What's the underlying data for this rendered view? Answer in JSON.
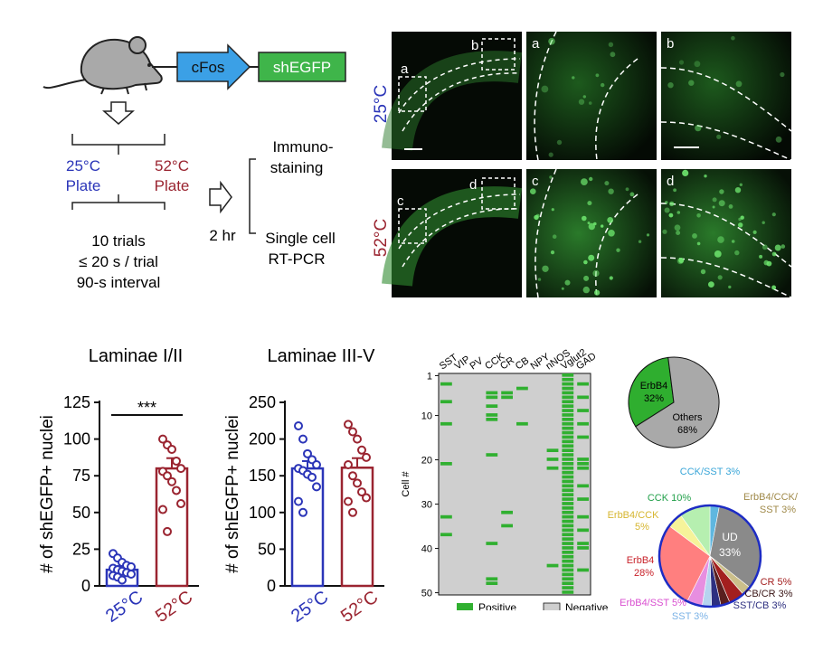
{
  "schematic": {
    "gene_promoter": "cFos",
    "gene_reporter": "shEGFP",
    "cond_cool_temp": "25°C",
    "cond_cool_plate": "Plate",
    "cond_hot_temp": "52°C",
    "cond_hot_plate": "Plate",
    "protocol": [
      "10 trials",
      "≤ 20 s / trial",
      "90-s interval"
    ],
    "delay": "2 hr",
    "readout_top": [
      "Immuno-",
      "staining"
    ],
    "readout_bottom": [
      "Single cell",
      "RT-PCR"
    ]
  },
  "micrographs": {
    "row_cool_label": "25°C",
    "row_hot_label": "52°C",
    "panel_letters": [
      "a",
      "b",
      "a",
      "b",
      "c",
      "d",
      "c",
      "d"
    ]
  },
  "chart_data": [
    {
      "type": "bar",
      "title": "Laminae I/II",
      "ylabel": "# of shEGFP+ nuclei",
      "categories": [
        "25°C",
        "52°C"
      ],
      "values": [
        11,
        80
      ],
      "errors": [
        2.5,
        7
      ],
      "ylim": [
        0,
        125
      ],
      "yticks": [
        0,
        25,
        50,
        75,
        100,
        125
      ],
      "significance": "***",
      "points": [
        [
          22,
          19,
          16,
          14,
          13,
          12,
          11,
          10,
          9,
          8,
          7,
          6,
          4
        ],
        [
          100,
          96,
          93,
          85,
          80,
          78,
          75,
          71,
          65,
          56,
          52,
          37
        ]
      ],
      "colors": [
        "#2b35b8",
        "#9a2430"
      ]
    },
    {
      "type": "bar",
      "title": "Laminae III-V",
      "ylabel": "# of shEGFP+ nuclei",
      "categories": [
        "25°C",
        "52°C"
      ],
      "values": [
        160,
        161
      ],
      "errors": [
        10,
        13
      ],
      "ylim": [
        0,
        250
      ],
      "yticks": [
        0,
        50,
        100,
        150,
        200,
        250
      ],
      "points": [
        [
          218,
          200,
          180,
          172,
          165,
          160,
          157,
          152,
          148,
          135,
          115,
          100
        ],
        [
          220,
          210,
          200,
          185,
          175,
          165,
          150,
          140,
          128,
          120,
          115,
          100
        ]
      ],
      "colors": [
        "#2b35b8",
        "#9a2430"
      ]
    },
    {
      "type": "heatmap",
      "ylabel": "Cell #",
      "columns": [
        "SST",
        "VIP",
        "PV",
        "CCK",
        "CR",
        "CB",
        "NPY",
        "nNOS",
        "Vglut2",
        "GAD"
      ],
      "yticks": [
        1,
        10,
        20,
        30,
        40,
        50
      ],
      "rows": 50,
      "legend": [
        "Positive",
        "Negative"
      ],
      "colors": {
        "positive": "#30b030",
        "negative": "#cfcfcf"
      },
      "positive_cells": {
        "SST": [
          3,
          7,
          12,
          21,
          33,
          37
        ],
        "CCK": [
          5,
          6,
          8,
          10,
          11,
          19,
          39,
          47,
          48
        ],
        "CR": [
          5,
          6,
          32,
          35
        ],
        "CB": [
          4,
          12
        ],
        "Vglut2": [
          1,
          2,
          3,
          4,
          5,
          6,
          7,
          8,
          9,
          10,
          11,
          12,
          13,
          14,
          15,
          16,
          17,
          18,
          19,
          20,
          21,
          22,
          23,
          24,
          25,
          26,
          27,
          28,
          29,
          30,
          31,
          32,
          33,
          34,
          35,
          36,
          37,
          38,
          39,
          40,
          41,
          42,
          43,
          44,
          45,
          46,
          47,
          48,
          49,
          50
        ],
        "nNOS": [
          18,
          20,
          22,
          44
        ],
        "GAD": [
          3,
          6,
          9,
          12,
          15,
          20,
          21,
          22,
          26,
          29,
          33,
          36,
          39,
          40,
          45
        ]
      }
    },
    {
      "type": "pie",
      "slices": [
        {
          "label": "ErbB4",
          "pct": "32%",
          "value": 32,
          "color": "#2fae2f"
        },
        {
          "label": "Others",
          "pct": "68%",
          "value": 68,
          "color": "#a9a9a9"
        }
      ]
    },
    {
      "type": "pie",
      "slices": [
        {
          "label": "CCK/SST",
          "pct": "3%",
          "value": 3,
          "color": "#5fb7df"
        },
        {
          "label": "UD",
          "pct": "33%",
          "value": 33,
          "color": "#8a8a8a"
        },
        {
          "label": "ErbB4/CCK/SST",
          "pct": "3%",
          "value": 3,
          "color": "#cbbf8a"
        },
        {
          "label": "CR",
          "pct": "5%",
          "value": 5,
          "color": "#a31f1f"
        },
        {
          "label": "CB/CR",
          "pct": "3%",
          "value": 3,
          "color": "#5a1f1f"
        },
        {
          "label": "SST/CB",
          "pct": "3%",
          "value": 3,
          "color": "#2d2f80"
        },
        {
          "label": "SST",
          "pct": "3%",
          "value": 3,
          "color": "#b6d3ef"
        },
        {
          "label": "ErbB4/SST",
          "pct": "5%",
          "value": 5,
          "color": "#e78ee0"
        },
        {
          "label": "ErbB4",
          "pct": "28%",
          "value": 28,
          "color": "#ff7f7f"
        },
        {
          "label": "ErbB4/CCK",
          "pct": "5%",
          "value": 5,
          "color": "#f6f39a"
        },
        {
          "label": "CCK",
          "pct": "10%",
          "value": 10,
          "color": "#b6efb0"
        }
      ],
      "outline": "#1d2cc4"
    }
  ]
}
